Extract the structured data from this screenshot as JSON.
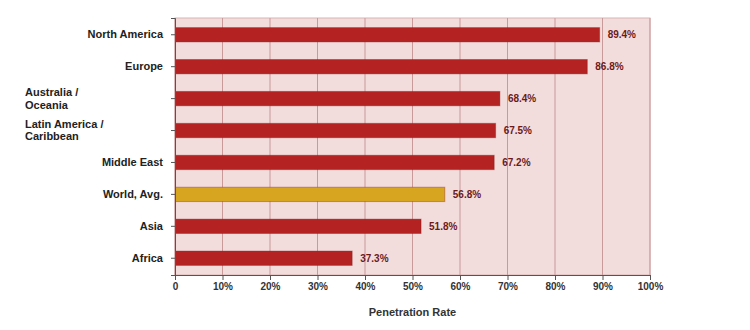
{
  "chart_data": {
    "type": "bar",
    "orientation": "horizontal",
    "x_label": "Penetration Rate",
    "categories": [
      "North America",
      "Europe",
      "Australia / Oceania",
      "Latin America / Caribbean",
      "Middle East",
      "World, Avg.",
      "Asia",
      "Africa"
    ],
    "values": [
      89.4,
      86.8,
      68.4,
      67.5,
      67.2,
      56.8,
      51.8,
      37.3
    ],
    "value_labels": [
      "89.4%",
      "86.8%",
      "68.4%",
      "67.5%",
      "67.2%",
      "56.8%",
      "51.8%",
      "37.3%"
    ],
    "colors": [
      "#b52222",
      "#b52222",
      "#b52222",
      "#b52222",
      "#b52222",
      "#d8a521",
      "#b52222",
      "#b52222"
    ],
    "xlim": [
      0,
      100
    ],
    "xticks": [
      0,
      {
        "value": 10,
        "label": "10%"
      },
      {
        "value": 20,
        "label": "20%"
      },
      {
        "value": 30,
        "label": "30%"
      },
      {
        "value": 40,
        "label": "40%"
      },
      {
        "value": 50,
        "label": "50%"
      },
      {
        "value": 60,
        "label": "60%"
      },
      {
        "value": 70,
        "label": "70%"
      },
      {
        "value": 80,
        "label": "80%"
      },
      {
        "value": 90,
        "label": "90%"
      },
      {
        "value": 100,
        "label": "100%"
      }
    ],
    "grid": true,
    "data_labels": true
  }
}
